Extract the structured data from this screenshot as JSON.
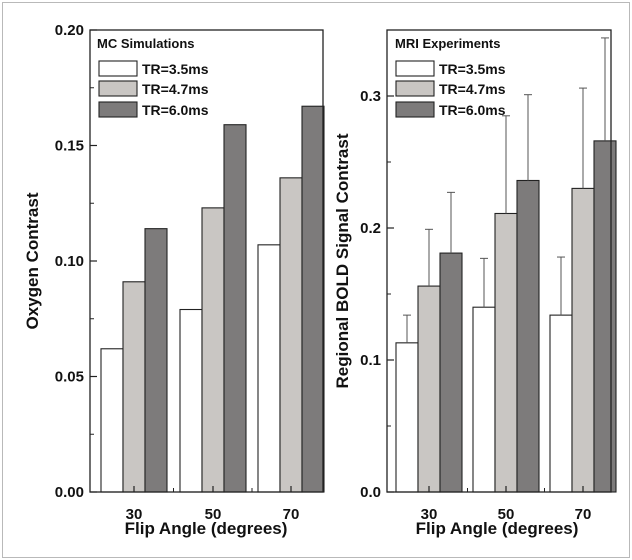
{
  "chart_data": [
    {
      "type": "bar",
      "title": "MC Simulations",
      "xlabel": "Flip Angle (degrees)",
      "ylabel": "Oxygen Contrast",
      "categories": [
        "30",
        "50",
        "70"
      ],
      "ylim": [
        0,
        0.2
      ],
      "yticks": [
        0.0,
        0.05,
        0.1,
        0.15,
        0.2
      ],
      "ytick_labels": [
        "0.00",
        "0.05",
        "0.10",
        "0.15",
        "0.20"
      ],
      "legend_position": "top-left",
      "series": [
        {
          "name": "TR=3.5ms",
          "values": [
            0.062,
            0.079,
            0.107
          ],
          "color": "#ffffff"
        },
        {
          "name": "TR=4.7ms",
          "values": [
            0.091,
            0.123,
            0.136
          ],
          "color": "#c9c6c3"
        },
        {
          "name": "TR=6.0ms",
          "values": [
            0.114,
            0.159,
            0.167
          ],
          "color": "#7d7b7b"
        }
      ]
    },
    {
      "type": "bar",
      "title": "MRI Experiments",
      "xlabel": "Flip Angle (degrees)",
      "ylabel": "Regional BOLD Signal Contrast",
      "categories": [
        "30",
        "50",
        "70"
      ],
      "ylim": [
        0,
        0.35
      ],
      "yticks": [
        0.0,
        0.1,
        0.2,
        0.3
      ],
      "ytick_labels": [
        "0.0",
        "0.1",
        "0.2",
        "0.3"
      ],
      "legend_position": "top-left",
      "series": [
        {
          "name": "TR=3.5ms",
          "values": [
            0.113,
            0.14,
            0.134
          ],
          "errors": [
            0.021,
            0.037,
            0.044
          ],
          "color": "#ffffff"
        },
        {
          "name": "TR=4.7ms",
          "values": [
            0.156,
            0.211,
            0.23
          ],
          "errors": [
            0.043,
            0.074,
            0.076
          ],
          "color": "#c9c6c3"
        },
        {
          "name": "TR=6.0ms",
          "values": [
            0.181,
            0.236,
            0.266
          ],
          "errors": [
            0.046,
            0.065,
            0.078
          ],
          "color": "#7d7b7b"
        }
      ]
    }
  ]
}
